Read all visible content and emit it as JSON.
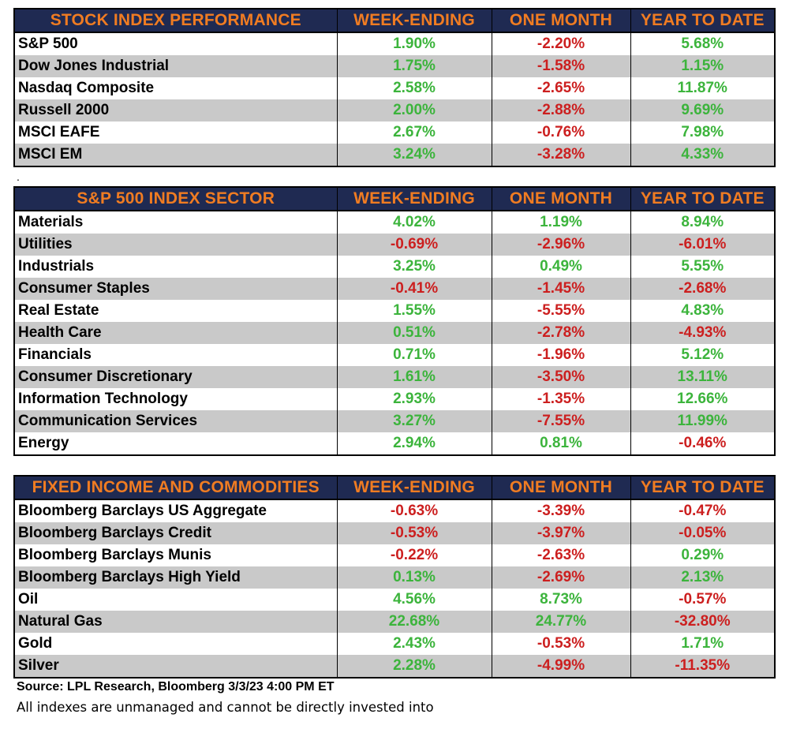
{
  "columns": [
    "WEEK-ENDING",
    "ONE MONTH",
    "YEAR TO DATE"
  ],
  "tables": [
    {
      "title": "STOCK INDEX PERFORMANCE",
      "rows": [
        {
          "name": "S&P 500",
          "values": [
            "1.90%",
            "-2.20%",
            "5.68%"
          ]
        },
        {
          "name": "Dow Jones Industrial",
          "values": [
            "1.75%",
            "-1.58%",
            "1.15%"
          ]
        },
        {
          "name": "Nasdaq Composite",
          "values": [
            "2.58%",
            "-2.65%",
            "11.87%"
          ]
        },
        {
          "name": "Russell 2000",
          "values": [
            "2.00%",
            "-2.88%",
            "9.69%"
          ]
        },
        {
          "name": "MSCI EAFE",
          "values": [
            "2.67%",
            "-0.76%",
            "7.98%"
          ]
        },
        {
          "name": "MSCI EM",
          "values": [
            "3.24%",
            "-3.28%",
            "4.33%"
          ]
        }
      ]
    },
    {
      "title": "S&P 500 INDEX SECTOR",
      "rows": [
        {
          "name": "Materials",
          "values": [
            "4.02%",
            "1.19%",
            "8.94%"
          ]
        },
        {
          "name": "Utilities",
          "values": [
            "-0.69%",
            "-2.96%",
            "-6.01%"
          ]
        },
        {
          "name": "Industrials",
          "values": [
            "3.25%",
            "0.49%",
            "5.55%"
          ]
        },
        {
          "name": "Consumer Staples",
          "values": [
            "-0.41%",
            "-1.45%",
            "-2.68%"
          ]
        },
        {
          "name": "Real Estate",
          "values": [
            "1.55%",
            "-5.55%",
            "4.83%"
          ]
        },
        {
          "name": "Health Care",
          "values": [
            "0.51%",
            "-2.78%",
            "-4.93%"
          ]
        },
        {
          "name": "Financials",
          "values": [
            "0.71%",
            "-1.96%",
            "5.12%"
          ]
        },
        {
          "name": "Consumer Discretionary",
          "values": [
            "1.61%",
            "-3.50%",
            "13.11%"
          ]
        },
        {
          "name": "Information Technology",
          "values": [
            "2.93%",
            "-1.35%",
            "12.66%"
          ]
        },
        {
          "name": "Communication Services",
          "values": [
            "3.27%",
            "-7.55%",
            "11.99%"
          ]
        },
        {
          "name": "Energy",
          "values": [
            "2.94%",
            "0.81%",
            "-0.46%"
          ]
        }
      ]
    },
    {
      "title": "FIXED INCOME AND COMMODITIES",
      "rows": [
        {
          "name": "Bloomberg Barclays US Aggregate",
          "values": [
            "-0.63%",
            "-3.39%",
            "-0.47%"
          ]
        },
        {
          "name": "Bloomberg Barclays Credit",
          "values": [
            "-0.53%",
            "-3.97%",
            "-0.05%"
          ]
        },
        {
          "name": "Bloomberg Barclays Munis",
          "values": [
            "-0.22%",
            "-2.63%",
            "0.29%"
          ]
        },
        {
          "name": "Bloomberg Barclays High Yield",
          "values": [
            "0.13%",
            "-2.69%",
            "2.13%"
          ]
        },
        {
          "name": "Oil",
          "values": [
            "4.56%",
            "8.73%",
            "-0.57%"
          ]
        },
        {
          "name": "Natural Gas",
          "values": [
            "22.68%",
            "24.77%",
            "-32.80%"
          ]
        },
        {
          "name": "Gold",
          "values": [
            "2.43%",
            "-0.53%",
            "1.71%"
          ]
        },
        {
          "name": "Silver",
          "values": [
            "2.28%",
            "-4.99%",
            "-11.35%"
          ]
        }
      ]
    }
  ],
  "separator_mark": ".",
  "source": "Source: LPL Research, Bloomberg 3/3/23 4:00 PM ET",
  "note": "All indexes are unmanaged and cannot be directly invested into",
  "colors": {
    "header_bg": "#1f2a52",
    "header_text": "#f07c22",
    "positive": "#3cb43c",
    "negative": "#cc1f1f",
    "alt_row": "#c9c9c9"
  }
}
